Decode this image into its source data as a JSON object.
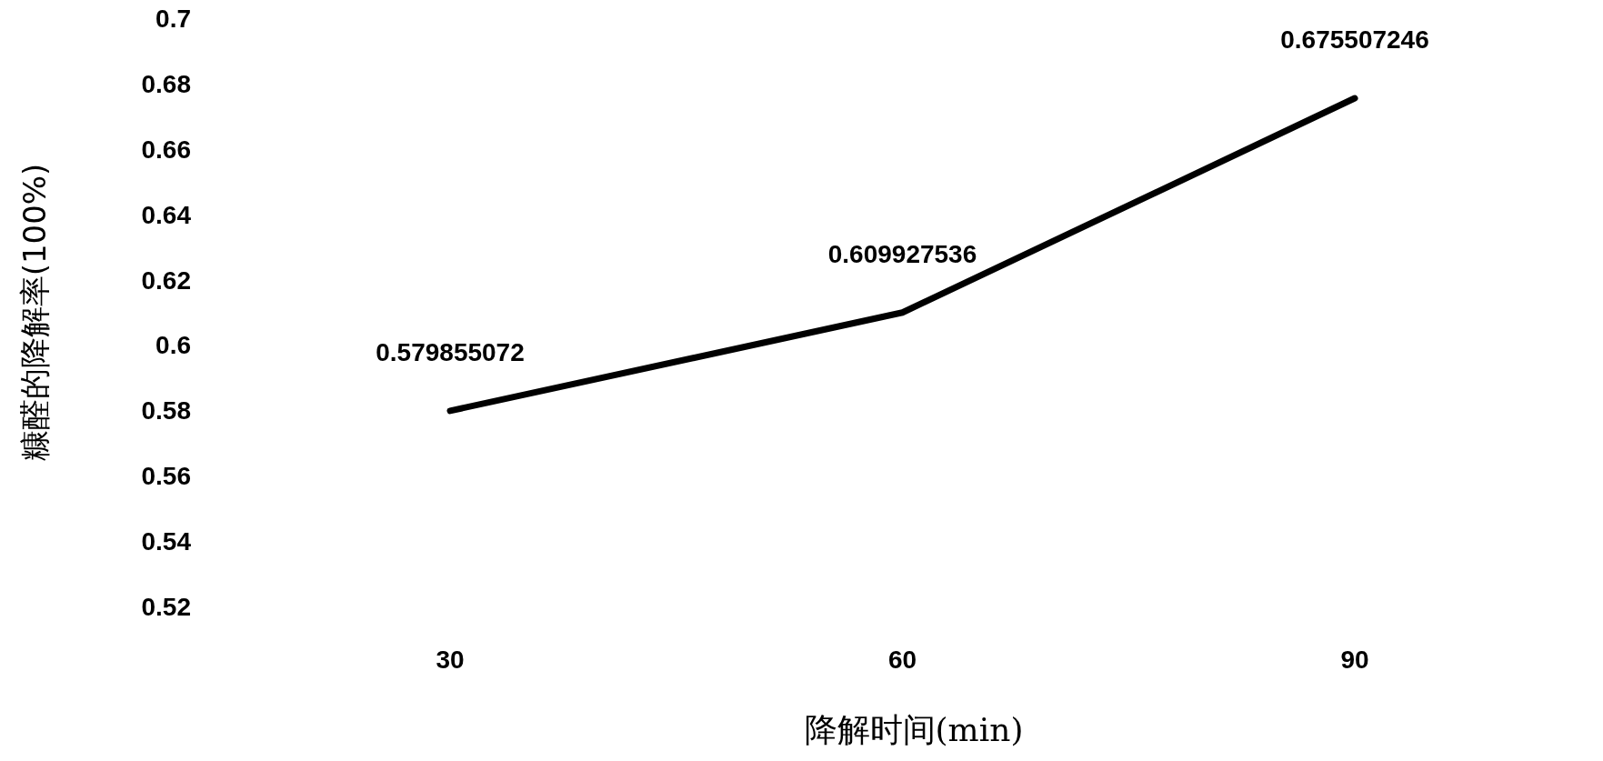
{
  "chart_data": {
    "type": "line",
    "xlabel": "降解时间(min)",
    "ylabel": "糠醛的降解率(100%)",
    "categories": [
      "30",
      "60",
      "90"
    ],
    "series": [
      {
        "color": "#000000",
        "values": [
          0.579855072,
          0.609927536,
          0.675507246
        ]
      }
    ],
    "ylim": [
      0.52,
      0.7
    ],
    "yticks": [
      0.52,
      0.54,
      0.56,
      0.58,
      0.6,
      0.62,
      0.64,
      0.66,
      0.68,
      0.7
    ],
    "data_labels": true,
    "grid": false,
    "marker": "none",
    "line_style": "solid"
  }
}
